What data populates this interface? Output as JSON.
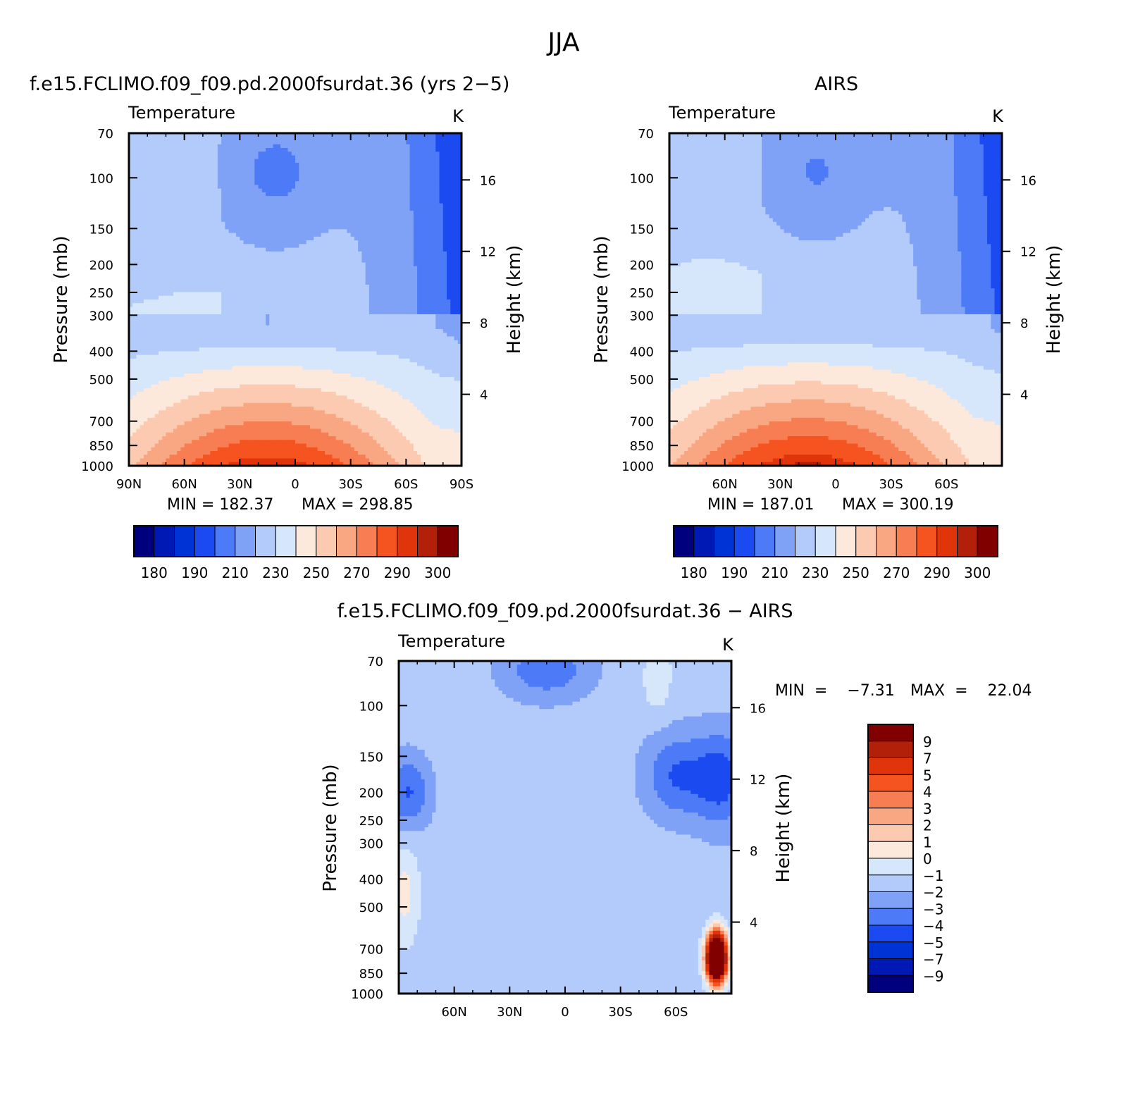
{
  "figure_title": "JJA",
  "colors": {
    "temperature_scale": [
      "#00007f",
      "#0019b4",
      "#0033d6",
      "#1a4af0",
      "#4d7af7",
      "#7fa2f7",
      "#b3cbfa",
      "#d6e6fb",
      "#fde9db",
      "#fbcab0",
      "#f9a683",
      "#f77d52",
      "#f55320",
      "#e0340a",
      "#b3200a",
      "#800000"
    ],
    "difference_scale": [
      "#00007f",
      "#0019b4",
      "#0033d6",
      "#1a4af0",
      "#4d7af7",
      "#7fa2f7",
      "#b3cbfa",
      "#d6e6fb",
      "#fde9db",
      "#fbcab0",
      "#f9a683",
      "#f77d52",
      "#f55320",
      "#e0340a",
      "#b3200a",
      "#800000"
    ]
  },
  "chart_data": [
    {
      "type": "heatmap",
      "id": "model",
      "title": "f.e15.FCLIMO.f09_f09.pd.2000fsurdat.36 (yrs 2−5)",
      "subtitle_left": "Temperature",
      "subtitle_right": "K",
      "ylabel": "Pressure  (mb)",
      "ylabel_right": "Height  (km)",
      "x_ticks": [
        "90N",
        "60N",
        "30N",
        "0",
        "30S",
        "60S",
        "90S"
      ],
      "x_range": [
        90,
        -90
      ],
      "y_ticks": [
        "70",
        "100",
        "150",
        "200",
        "250",
        "300",
        "400",
        "500",
        "700",
        "850",
        "1000"
      ],
      "y_range_mb": [
        1000,
        70
      ],
      "height_ticks": [
        "16",
        "12",
        "8",
        "4"
      ],
      "min_label": "MIN  =  182.37",
      "max_label": "MAX  =  298.85",
      "min": 182.37,
      "max": 298.85,
      "colorbar_labels": [
        "180",
        "190",
        "210",
        "230",
        "250",
        "270",
        "290",
        "300"
      ],
      "colorbar_levels": [
        175,
        180,
        185,
        190,
        200,
        210,
        220,
        230,
        240,
        250,
        260,
        270,
        280,
        290,
        295,
        300
      ]
    },
    {
      "type": "heatmap",
      "id": "obs",
      "title": "AIRS",
      "subtitle_left": "Temperature",
      "subtitle_right": "K",
      "ylabel": "Pressure  (mb)",
      "ylabel_right": "Height  (km)",
      "x_ticks": [
        "60N",
        "30N",
        "0",
        "30S",
        "60S"
      ],
      "x_range": [
        90,
        -90
      ],
      "y_ticks": [
        "70",
        "100",
        "150",
        "200",
        "250",
        "300",
        "400",
        "500",
        "700",
        "850",
        "1000"
      ],
      "y_range_mb": [
        1000,
        70
      ],
      "height_ticks": [
        "16",
        "12",
        "8",
        "4"
      ],
      "min_label": "MIN  =  187.01",
      "max_label": "MAX  =  300.19",
      "min": 187.01,
      "max": 300.19,
      "colorbar_labels": [
        "180",
        "190",
        "210",
        "230",
        "250",
        "270",
        "290",
        "300"
      ],
      "colorbar_levels": [
        175,
        180,
        185,
        190,
        200,
        210,
        220,
        230,
        240,
        250,
        260,
        270,
        280,
        290,
        295,
        300
      ]
    },
    {
      "type": "heatmap",
      "id": "diff",
      "title": "f.e15.FCLIMO.f09_f09.pd.2000fsurdat.36  −  AIRS",
      "subtitle_left": "Temperature",
      "subtitle_right": "K",
      "ylabel": "Pressure  (mb)",
      "ylabel_right": "Height  (km)",
      "x_ticks": [
        "60N",
        "30N",
        "0",
        "30S",
        "60S"
      ],
      "x_range": [
        90,
        -90
      ],
      "y_ticks": [
        "70",
        "100",
        "150",
        "200",
        "250",
        "300",
        "400",
        "500",
        "700",
        "850",
        "1000"
      ],
      "y_range_mb": [
        1000,
        70
      ],
      "height_ticks": [
        "16",
        "12",
        "8",
        "4"
      ],
      "min_label": "MIN  =    −7.31",
      "max_label": "MAX  =    22.04",
      "min": -7.31,
      "max": 22.04,
      "colorbar_labels": [
        "9",
        "7",
        "5",
        "4",
        "3",
        "2",
        "1",
        "0",
        "−1",
        "−2",
        "−3",
        "−4",
        "−5",
        "−7",
        "−9"
      ],
      "colorbar_levels": [
        -9,
        -7,
        -5,
        -4,
        -3,
        -2,
        -1,
        0,
        1,
        2,
        3,
        4,
        5,
        7,
        9
      ]
    }
  ]
}
